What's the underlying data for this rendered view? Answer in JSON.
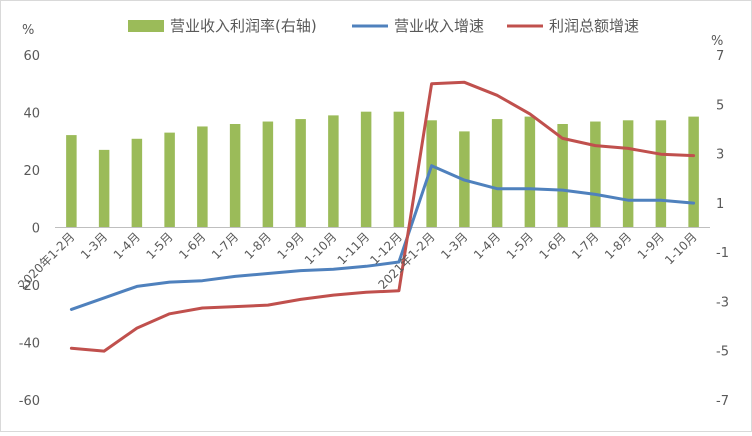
{
  "chart_data": {
    "type": "bar+line",
    "categories": [
      "2020年1-2月",
      "1-3月",
      "1-4月",
      "1-5月",
      "1-6月",
      "1-7月",
      "1-8月",
      "1-9月",
      "1-10月",
      "1-11月",
      "1-12月",
      "2021年1-2月",
      "1-3月",
      "1-4月",
      "1-5月",
      "1-6月",
      "1-7月",
      "1-8月",
      "1-9月",
      "1-10月"
    ],
    "left_axis": {
      "unit": "%",
      "min": -60,
      "max": 60,
      "ticks": [
        60,
        40,
        20,
        0,
        -20,
        -40,
        -60
      ]
    },
    "right_axis": {
      "unit": "%",
      "min": -7,
      "max": 7,
      "ticks": [
        7,
        5,
        3,
        1,
        -1,
        -3,
        -5,
        -7
      ]
    },
    "legend_position": "top",
    "grid": false,
    "series": [
      {
        "name": "营业收入利润率(右轴)",
        "kind": "bar",
        "axis": "right",
        "color": "#9BBB59",
        "values": [
          3.75,
          3.15,
          3.6,
          3.85,
          4.1,
          4.2,
          4.3,
          4.4,
          4.55,
          4.7,
          4.7,
          4.35,
          3.9,
          4.4,
          4.5,
          4.2,
          4.3,
          4.35,
          4.35,
          4.5
        ]
      },
      {
        "name": "营业收入增速",
        "kind": "line",
        "axis": "left",
        "color": "#4F81BD",
        "values": [
          -28.5,
          -24.5,
          -20.5,
          -19,
          -18.5,
          -17,
          -16,
          -15,
          -14.5,
          -13.5,
          -12,
          21.5,
          16.5,
          13.5,
          13.5,
          13,
          11.5,
          9.5,
          9.5,
          8.5
        ]
      },
      {
        "name": "利润总额增速",
        "kind": "line",
        "axis": "left",
        "color": "#C0504D",
        "values": [
          -42,
          -43,
          -35,
          -30,
          -28,
          -27.5,
          -27,
          -25,
          -23.5,
          -22.5,
          -22,
          50,
          50.5,
          46,
          39.5,
          31,
          28.5,
          27.5,
          25.5,
          25
        ]
      }
    ]
  }
}
